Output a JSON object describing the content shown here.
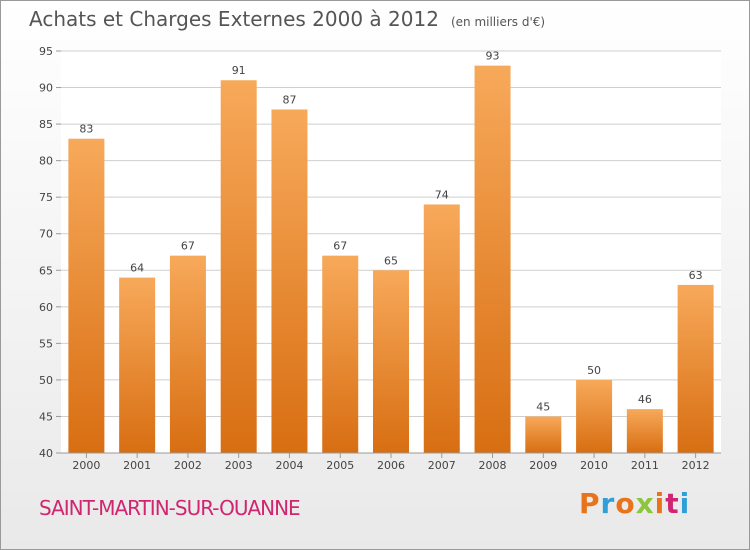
{
  "title": {
    "main": "Achats et Charges Externes 2000 à 2012",
    "unit": "(en milliers d'€)"
  },
  "commune": "SAINT-MARTIN-SUR-OUANNE",
  "brand": {
    "letters": [
      "P",
      "r",
      "o",
      "x",
      "i",
      "t",
      "i"
    ],
    "colors": [
      "#e8731a",
      "#2f9fd9",
      "#e8731a",
      "#8cc63f",
      "#e8731a",
      "#d02570",
      "#2f9fd9"
    ]
  },
  "colors": {
    "bar_top": "#f7a95a",
    "bar_bottom": "#d86e12",
    "grid": "#cfcfcf",
    "title": "#555555",
    "commune": "#d02570"
  },
  "chart_data": {
    "type": "bar",
    "categories": [
      "2000",
      "2001",
      "2002",
      "2003",
      "2004",
      "2005",
      "2006",
      "2007",
      "2008",
      "2009",
      "2010",
      "2011",
      "2012"
    ],
    "values": [
      83,
      64,
      67,
      91,
      87,
      67,
      65,
      74,
      93,
      45,
      50,
      46,
      63
    ],
    "title": "Achats et Charges Externes 2000 à 2012",
    "ylim": [
      40,
      95
    ],
    "yticks": [
      40,
      45,
      50,
      55,
      60,
      65,
      70,
      75,
      80,
      85,
      90,
      95
    ],
    "grid": true,
    "data_labels": true
  }
}
